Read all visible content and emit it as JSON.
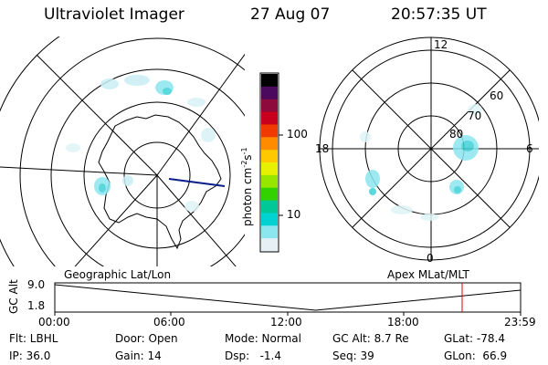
{
  "header": {
    "instrument": "Ultraviolet Imager",
    "date": "27 Aug 07",
    "time": "20:57:35 UT"
  },
  "left_panel": {
    "label": "Geographic Lat/Lon"
  },
  "right_panel": {
    "label": "Apex MLat/MLT",
    "mlt_labels": {
      "top": "12",
      "bottom": "0",
      "left": "18",
      "right": "6"
    },
    "mlat_labels": [
      "60",
      "70",
      "80"
    ]
  },
  "colorbar": {
    "unit_label": "photon cm",
    "unit_sup1": "-2",
    "unit_mid": "s",
    "unit_sup2": "-1",
    "ticks": [
      "100",
      "10"
    ],
    "colors": [
      "#000000",
      "#4b0a5e",
      "#8c0a3c",
      "#c8001e",
      "#f03a00",
      "#ff8c00",
      "#ffc800",
      "#e6f000",
      "#96e600",
      "#32d200",
      "#00c896",
      "#00d2d2",
      "#8ce6f0",
      "#e6f0f5"
    ]
  },
  "timeline": {
    "y_axis_label": "GC Alt",
    "y_ticks": [
      "9.0",
      "1.8"
    ],
    "x_ticks": [
      "00:00",
      "06:00",
      "12:00",
      "18:00",
      "23:59"
    ],
    "marker_color": "#e00000"
  },
  "footer": {
    "row1": {
      "flt": "Flt: LBHL",
      "door": "Door: Open",
      "mode": "Mode: Normal",
      "gc_alt": "GC Alt: 8.7 Re",
      "glat": "GLat: -78.4"
    },
    "row2": {
      "ip": "IP: 36.0",
      "gain": "Gain: 14",
      "dsp": "Dsp:   -1.4",
      "seq": "Seq: 39",
      "glon": "GLon:  66.9"
    }
  }
}
